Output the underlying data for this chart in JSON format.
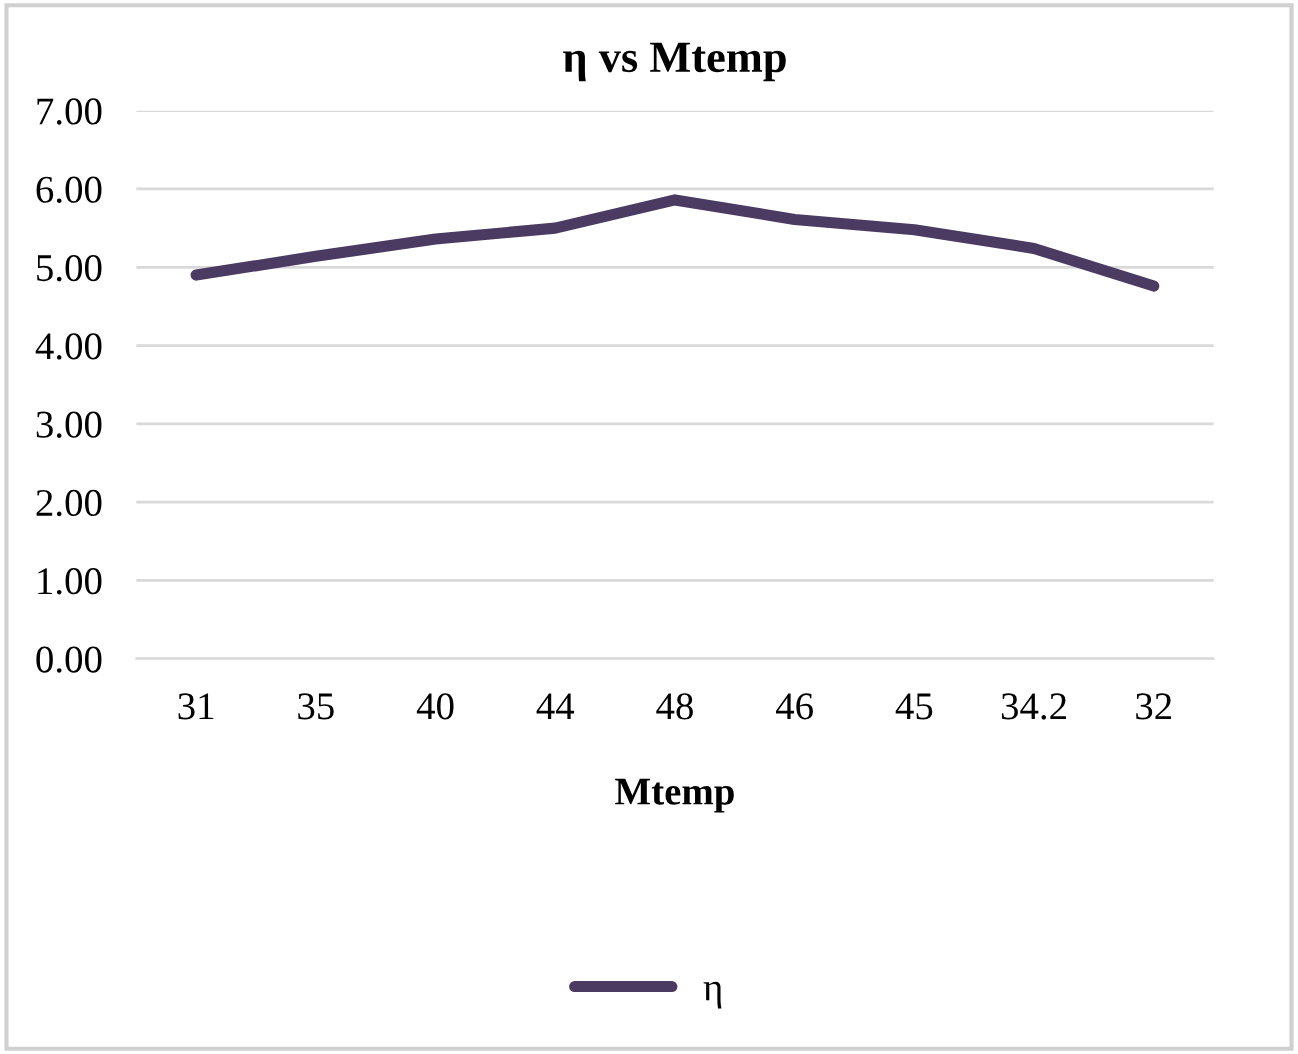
{
  "chart_data": {
    "type": "line",
    "title": "η vs Mtemp",
    "xlabel": "Mtemp",
    "categories": [
      "31",
      "35",
      "40",
      "44",
      "48",
      "46",
      "45",
      "34.2",
      "32"
    ],
    "series": [
      {
        "name": "η",
        "color": "#4b3b63",
        "values": [
          4.9,
          5.14,
          5.36,
          5.5,
          5.86,
          5.61,
          5.48,
          5.24,
          4.76
        ]
      }
    ],
    "ylim": [
      0,
      7
    ],
    "yticks": [
      {
        "value": 0,
        "label": "0.00"
      },
      {
        "value": 1,
        "label": "1.00"
      },
      {
        "value": 2,
        "label": "2.00"
      },
      {
        "value": 3,
        "label": "3.00"
      },
      {
        "value": 4,
        "label": "4.00"
      },
      {
        "value": 5,
        "label": "5.00"
      },
      {
        "value": 6,
        "label": "6.00"
      },
      {
        "value": 7,
        "label": "7.00"
      }
    ],
    "grid": "y",
    "legend": "bottom",
    "marker": "none",
    "line_style": "solid"
  }
}
